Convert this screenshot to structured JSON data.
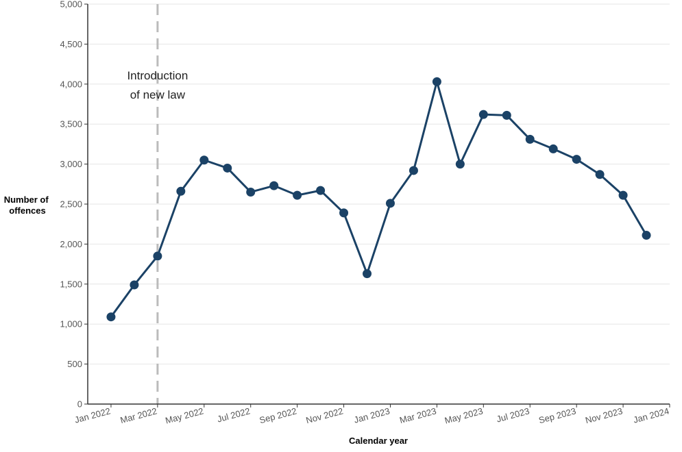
{
  "chart_data": {
    "type": "line",
    "xlabel": "Calendar year",
    "ylabel_lines": [
      "Number of",
      "offences"
    ],
    "ylim": [
      0,
      5000
    ],
    "yticks": [
      0,
      500,
      1000,
      1500,
      2000,
      2500,
      3000,
      3500,
      4000,
      4500,
      5000
    ],
    "ytick_labels": [
      "0",
      "500",
      "1,000",
      "1,500",
      "2,000",
      "2,500",
      "3,000",
      "3,500",
      "4,000",
      "4,500",
      "5,000"
    ],
    "xlim": [
      "2021-12-01",
      "2024-01-01"
    ],
    "xticks": [
      "2022-01-01",
      "2022-03-01",
      "2022-05-01",
      "2022-07-01",
      "2022-09-01",
      "2022-11-01",
      "2023-01-01",
      "2023-03-01",
      "2023-05-01",
      "2023-07-01",
      "2023-09-01",
      "2023-11-01",
      "2024-01-01"
    ],
    "xtick_labels": [
      "Jan 2022",
      "Mar 2022",
      "May 2022",
      "Jul 2022",
      "Sep 2022",
      "Nov 2022",
      "Jan 2023",
      "Mar 2023",
      "May 2023",
      "Jul 2023",
      "Sep 2023",
      "Nov 2023",
      "Jan 2024"
    ],
    "grid": "horizontal",
    "series": [
      {
        "color": "#1b4266",
        "x": [
          "2022-01",
          "2022-02",
          "2022-03",
          "2022-04",
          "2022-05",
          "2022-06",
          "2022-07",
          "2022-08",
          "2022-09",
          "2022-10",
          "2022-11",
          "2022-12",
          "2023-01",
          "2023-02",
          "2023-03",
          "2023-04",
          "2023-05",
          "2023-06",
          "2023-07",
          "2023-08",
          "2023-09",
          "2023-10",
          "2023-11",
          "2023-12"
        ],
        "values": [
          1090,
          1490,
          1850,
          2660,
          3050,
          2950,
          2650,
          2730,
          2610,
          2670,
          2390,
          1630,
          2510,
          2920,
          4030,
          3000,
          3620,
          3610,
          3310,
          3190,
          3060,
          2870,
          2610,
          2110
        ]
      }
    ],
    "annotations": [
      {
        "x": "2022-03",
        "text_lines": [
          "Introduction",
          "of new law"
        ],
        "line_style": "dashed",
        "color": "#bbbbbb"
      }
    ]
  }
}
